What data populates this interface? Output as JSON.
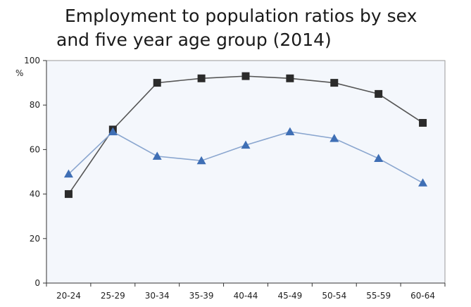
{
  "chart_data": {
    "type": "line",
    "title_line1": "Employment to population ratios by sex",
    "title_line2": "and five year age group (2014)",
    "y_unit": "%",
    "categories": [
      "20-24",
      "25-29",
      "30-34",
      "35-39",
      "40-44",
      "45-49",
      "50-54",
      "55-59",
      "60-64"
    ],
    "ylim": [
      0,
      100
    ],
    "yticks": [
      0,
      20,
      40,
      60,
      80,
      100
    ],
    "series": [
      {
        "marker": "square",
        "color": "#555555",
        "marker_color": "#2b2b2b",
        "values": [
          40,
          69,
          90,
          92,
          93,
          92,
          90,
          85,
          72
        ]
      },
      {
        "marker": "triangle",
        "color": "#8aa6cf",
        "marker_color": "#3f6fb5",
        "values": [
          49,
          68,
          57,
          55,
          62,
          68,
          65,
          56,
          45
        ]
      }
    ],
    "grid": false,
    "legend": "none",
    "plot_background": "#f4f7fc"
  }
}
